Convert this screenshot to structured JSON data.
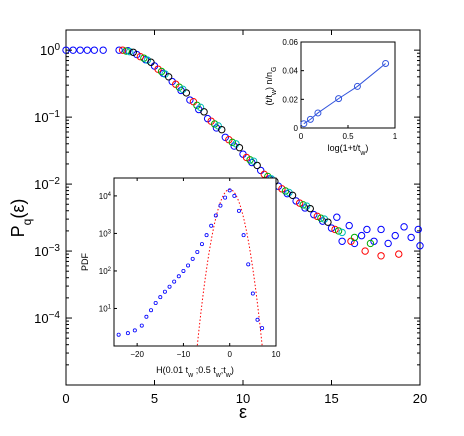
{
  "chart_data": [
    {
      "type": "scatter",
      "xlabel": "ε",
      "ylabel": "P_q(ε)",
      "xlim": [
        0,
        20
      ],
      "ylim": [
        1e-05,
        2
      ],
      "yscale": "log",
      "xticks": [
        0,
        5,
        10,
        15,
        20
      ],
      "yticks": [
        1,
        0.1,
        0.01,
        0.001,
        0.0001
      ],
      "xtick_labels": [
        "0",
        "5",
        "10",
        "15",
        "20"
      ],
      "ytick_labels": [
        {
          "base": "10",
          "exp": "0"
        },
        {
          "base": "10",
          "exp": "−1"
        },
        {
          "base": "10",
          "exp": "−2"
        },
        {
          "base": "10",
          "exp": "−3"
        },
        {
          "base": "10",
          "exp": "−4"
        }
      ],
      "grid": false,
      "marker": "open-circle",
      "colors": [
        "#0000ff",
        "#ff0000",
        "#00aa00",
        "#00bbbb",
        "#000000"
      ],
      "series": [
        {
          "color": "#0000ff",
          "points": [
            [
              0,
              1
            ],
            [
              0.4,
              1
            ],
            [
              0.8,
              1
            ],
            [
              1.2,
              1
            ],
            [
              1.6,
              1
            ],
            [
              2.1,
              1
            ],
            [
              3.0,
              1
            ],
            [
              3.5,
              0.98
            ],
            [
              4.0,
              0.86
            ],
            [
              4.5,
              0.72
            ],
            [
              5.0,
              0.58
            ],
            [
              5.5,
              0.45
            ],
            [
              6.0,
              0.34
            ],
            [
              6.5,
              0.25
            ],
            [
              7.0,
              0.18
            ],
            [
              7.5,
              0.13
            ],
            [
              8.0,
              0.095
            ],
            [
              8.5,
              0.069
            ],
            [
              9.0,
              0.05
            ],
            [
              9.5,
              0.037
            ],
            [
              10.0,
              0.028
            ],
            [
              10.5,
              0.021
            ],
            [
              11.0,
              0.016
            ],
            [
              11.5,
              0.012
            ],
            [
              12.0,
              0.0093
            ],
            [
              12.5,
              0.0072
            ],
            [
              13.0,
              0.0056
            ],
            [
              13.5,
              0.0044
            ],
            [
              14.0,
              0.0035
            ],
            [
              14.5,
              0.0028
            ],
            [
              15.0,
              0.0022
            ],
            [
              15.3,
              0.0032
            ],
            [
              15.6,
              0.0014
            ],
            [
              16.0,
              0.0024
            ],
            [
              16.3,
              0.0013
            ],
            [
              16.7,
              0.0017
            ],
            [
              17.0,
              0.0021
            ],
            [
              17.4,
              0.0014
            ],
            [
              17.8,
              0.0021
            ],
            [
              18.2,
              0.0013
            ],
            [
              18.6,
              0.0017
            ],
            [
              19.1,
              0.0023
            ],
            [
              19.5,
              0.0016
            ],
            [
              19.9,
              0.0021
            ],
            [
              20.0,
              0.0012
            ]
          ]
        },
        {
          "color": "#ff0000",
          "points": [
            [
              3.2,
              1
            ],
            [
              4.2,
              0.8
            ],
            [
              5.2,
              0.52
            ],
            [
              6.2,
              0.31
            ],
            [
              7.2,
              0.17
            ],
            [
              8.2,
              0.087
            ],
            [
              9.2,
              0.046
            ],
            [
              10.2,
              0.025
            ],
            [
              11.2,
              0.014
            ],
            [
              12.2,
              0.0085
            ],
            [
              13.2,
              0.0052
            ],
            [
              14.2,
              0.0033
            ],
            [
              15.2,
              0.0021
            ],
            [
              16.1,
              0.0014
            ],
            [
              16.9,
              0.001
            ],
            [
              17.8,
              0.00085
            ],
            [
              18.8,
              0.0009
            ]
          ]
        },
        {
          "color": "#00aa00",
          "points": [
            [
              3.4,
              0.97
            ],
            [
              4.4,
              0.76
            ],
            [
              5.4,
              0.48
            ],
            [
              6.4,
              0.28
            ],
            [
              7.4,
              0.15
            ],
            [
              8.4,
              0.079
            ],
            [
              9.4,
              0.042
            ],
            [
              10.4,
              0.023
            ],
            [
              11.4,
              0.013
            ],
            [
              12.4,
              0.0079
            ],
            [
              13.4,
              0.0049
            ],
            [
              14.4,
              0.0031
            ],
            [
              15.4,
              0.002
            ],
            [
              16.3,
              0.0016
            ],
            [
              17.2,
              0.0013
            ]
          ]
        },
        {
          "color": "#00bbbb",
          "points": [
            [
              3.6,
              0.95
            ],
            [
              4.6,
              0.71
            ],
            [
              5.6,
              0.44
            ],
            [
              6.6,
              0.26
            ],
            [
              7.6,
              0.14
            ],
            [
              8.6,
              0.074
            ],
            [
              9.6,
              0.04
            ],
            [
              10.6,
              0.022
            ],
            [
              11.6,
              0.012
            ],
            [
              12.6,
              0.0075
            ],
            [
              13.6,
              0.0047
            ],
            [
              14.6,
              0.003
            ],
            [
              15.6,
              0.0019
            ]
          ]
        },
        {
          "color": "#000000",
          "points": [
            [
              3.8,
              0.93
            ],
            [
              4.8,
              0.66
            ],
            [
              5.8,
              0.4
            ],
            [
              6.8,
              0.23
            ],
            [
              7.8,
              0.12
            ],
            [
              8.8,
              0.065
            ],
            [
              9.8,
              0.035
            ],
            [
              10.8,
              0.019
            ],
            [
              11.8,
              0.011
            ],
            [
              12.8,
              0.0068
            ],
            [
              13.8,
              0.0043
            ],
            [
              14.8,
              0.0027
            ]
          ]
        }
      ]
    },
    {
      "type": "line",
      "inset": "upper-right",
      "xlabel": "log(1+t/t_w)",
      "ylabel": "(t/t_w) n/n_G",
      "xlim": [
        0,
        1
      ],
      "ylim": [
        0,
        0.06
      ],
      "xticks": [
        0,
        0.5,
        1
      ],
      "yticks": [
        0,
        0.02,
        0.04,
        0.06
      ],
      "xtick_labels": [
        "0",
        "0.5",
        "1"
      ],
      "ytick_labels": [
        "0",
        "0.02",
        "0.04",
        "0.06"
      ],
      "color": "#3355dd",
      "marker": "open-circle",
      "x": [
        0.03,
        0.1,
        0.18,
        0.4,
        0.6,
        0.9
      ],
      "y": [
        0.003,
        0.006,
        0.0105,
        0.0205,
        0.029,
        0.045
      ]
    },
    {
      "type": "scatter",
      "inset": "lower-center",
      "xlabel": "H(0.01 t_w ;0.5 t_w;t_w)",
      "ylabel": "PDF",
      "xlim": [
        -25,
        10
      ],
      "ylim": [
        1,
        30000
      ],
      "yscale": "log",
      "xticks": [
        -20,
        -10,
        0,
        10
      ],
      "yticks": [
        10,
        100,
        1000,
        10000
      ],
      "xtick_labels": [
        "−20",
        "−10",
        "0",
        "10"
      ],
      "ytick_labels": [
        {
          "base": "10",
          "exp": "1"
        },
        {
          "base": "10",
          "exp": "2"
        },
        {
          "base": "10",
          "exp": "3"
        },
        {
          "base": "10",
          "exp": "4"
        }
      ],
      "data_color": "#0000ff",
      "fit_color": "#ff0000",
      "fit": "gaussian",
      "fit_peak": [
        0,
        15000
      ],
      "x": [
        -24,
        -22,
        -20.5,
        -19,
        -18,
        -17,
        -16,
        -15,
        -14,
        -13,
        -12,
        -11,
        -10,
        -9,
        -8,
        -7,
        -6,
        -5,
        -4,
        -3,
        -2,
        -1,
        0,
        1,
        2,
        3,
        4,
        5,
        6,
        7
      ],
      "y": [
        2,
        2.2,
        2.6,
        3.5,
        6,
        9,
        14,
        20,
        28,
        38,
        52,
        72,
        100,
        140,
        210,
        320,
        520,
        900,
        1600,
        3000,
        5500,
        9000,
        14000,
        10000,
        4000,
        900,
        150,
        25,
        5,
        3
      ]
    }
  ]
}
